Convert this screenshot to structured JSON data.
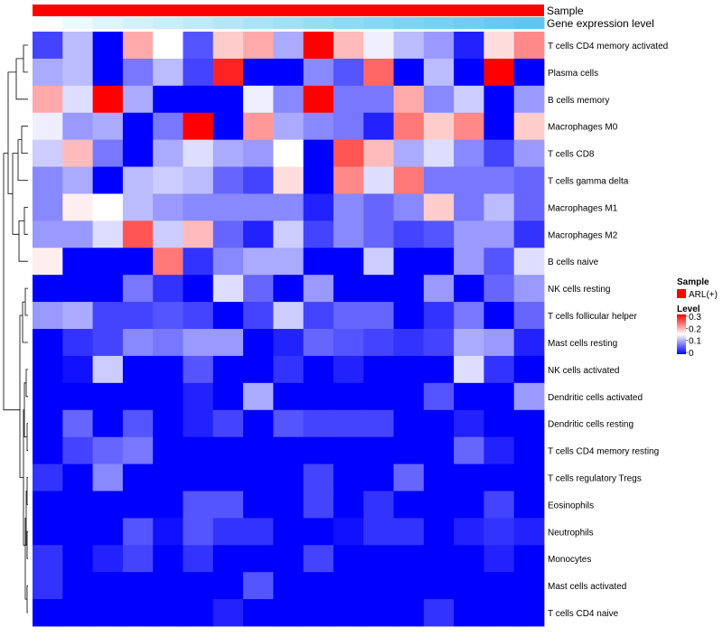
{
  "chart_data": {
    "type": "heatmap",
    "title": "",
    "annotation_rows": [
      {
        "name": "Sample",
        "color": "#ff0000"
      },
      {
        "name": "Gene expression level",
        "gradient": [
          "#ffffff",
          "#5ec7ef"
        ]
      }
    ],
    "rows": [
      "T cells CD4 memory activated",
      "Plasma cells",
      "B cells memory",
      "Macrophages M0",
      "T cells CD8",
      "T cells gamma delta",
      "Macrophages M1",
      "Macrophages M2",
      "B cells naive",
      "NK cells resting",
      "T cells follicular helper",
      "Mast cells resting",
      "NK cells activated",
      "Dendritic cells activated",
      "Dendritic cells resting",
      "T cells CD4 memory resting",
      "T cells regulatory  Tregs",
      "Eosinophils",
      "Neutrophils",
      "Monocytes",
      "Mast cells activated",
      "T cells CD4 naive"
    ],
    "n_columns": 17,
    "values": [
      [
        0.04,
        0.11,
        0.0,
        0.2,
        0.15,
        0.05,
        0.18,
        0.2,
        0.1,
        0.3,
        0.19,
        0.14,
        0.11,
        0.09,
        0.02,
        0.17,
        0.22
      ],
      [
        0.1,
        0.11,
        0.0,
        0.07,
        0.11,
        0.04,
        0.28,
        0.0,
        0.0,
        0.08,
        0.05,
        0.24,
        0.0,
        0.11,
        0.0,
        0.3,
        0.0
      ],
      [
        0.2,
        0.13,
        0.3,
        0.1,
        0.0,
        0.0,
        0.0,
        0.14,
        0.08,
        0.3,
        0.07,
        0.07,
        0.2,
        0.08,
        0.12,
        0.0,
        0.09
      ],
      [
        0.14,
        0.09,
        0.1,
        0.0,
        0.07,
        0.3,
        0.0,
        0.21,
        0.1,
        0.08,
        0.07,
        0.02,
        0.23,
        0.18,
        0.22,
        0.0,
        0.18
      ],
      [
        0.12,
        0.19,
        0.07,
        0.0,
        0.1,
        0.13,
        0.1,
        0.09,
        0.15,
        0.0,
        0.25,
        0.19,
        0.1,
        0.13,
        0.08,
        0.04,
        0.09
      ],
      [
        0.08,
        0.1,
        0.0,
        0.11,
        0.12,
        0.11,
        0.06,
        0.04,
        0.17,
        0.0,
        0.22,
        0.13,
        0.23,
        0.07,
        0.07,
        0.07,
        0.06
      ],
      [
        0.08,
        0.16,
        0.15,
        0.11,
        0.09,
        0.08,
        0.08,
        0.08,
        0.08,
        0.02,
        0.08,
        0.06,
        0.08,
        0.18,
        0.07,
        0.11,
        0.06
      ],
      [
        0.09,
        0.09,
        0.13,
        0.25,
        0.12,
        0.19,
        0.06,
        0.02,
        0.12,
        0.04,
        0.08,
        0.06,
        0.04,
        0.05,
        0.09,
        0.09,
        0.03
      ],
      [
        0.16,
        0.0,
        0.0,
        0.0,
        0.23,
        0.03,
        0.08,
        0.1,
        0.1,
        0.0,
        0.0,
        0.12,
        0.0,
        0.0,
        0.09,
        0.05,
        0.13
      ],
      [
        0.0,
        0.0,
        0.0,
        0.07,
        0.03,
        0.0,
        0.13,
        0.06,
        0.0,
        0.09,
        0.0,
        0.0,
        0.0,
        0.09,
        0.0,
        0.06,
        0.09
      ],
      [
        0.09,
        0.1,
        0.04,
        0.04,
        0.05,
        0.04,
        0.0,
        0.04,
        0.12,
        0.04,
        0.06,
        0.06,
        0.0,
        0.03,
        0.07,
        0.0,
        0.06
      ],
      [
        0.0,
        0.03,
        0.04,
        0.08,
        0.07,
        0.09,
        0.09,
        0.0,
        0.02,
        0.06,
        0.05,
        0.04,
        0.03,
        0.04,
        0.1,
        0.09,
        0.02
      ],
      [
        0.0,
        0.01,
        0.12,
        0.0,
        0.0,
        0.05,
        0.0,
        0.0,
        0.03,
        0.0,
        0.02,
        0.0,
        0.0,
        0.0,
        0.13,
        0.03,
        0.0
      ],
      [
        0.0,
        0.0,
        0.0,
        0.0,
        0.0,
        0.02,
        0.0,
        0.1,
        0.0,
        0.0,
        0.0,
        0.0,
        0.0,
        0.05,
        0.0,
        0.0,
        0.09
      ],
      [
        0.0,
        0.06,
        0.0,
        0.05,
        0.0,
        0.02,
        0.04,
        0.0,
        0.05,
        0.04,
        0.04,
        0.04,
        0.0,
        0.0,
        0.02,
        0.0,
        0.0
      ],
      [
        0.0,
        0.04,
        0.06,
        0.07,
        0.0,
        0.0,
        0.0,
        0.0,
        0.0,
        0.0,
        0.0,
        0.0,
        0.0,
        0.0,
        0.06,
        0.02,
        0.0
      ],
      [
        0.03,
        0.0,
        0.08,
        0.0,
        0.0,
        0.0,
        0.0,
        0.0,
        0.0,
        0.04,
        0.0,
        0.0,
        0.06,
        0.0,
        0.0,
        0.0,
        0.0
      ],
      [
        0.0,
        0.0,
        0.0,
        0.0,
        0.0,
        0.05,
        0.05,
        0.0,
        0.0,
        0.04,
        0.0,
        0.03,
        0.0,
        0.0,
        0.0,
        0.04,
        0.0
      ],
      [
        0.0,
        0.0,
        0.0,
        0.05,
        0.01,
        0.05,
        0.03,
        0.03,
        0.0,
        0.0,
        0.01,
        0.03,
        0.03,
        0.0,
        0.02,
        0.03,
        0.02
      ],
      [
        0.03,
        0.0,
        0.02,
        0.04,
        0.0,
        0.03,
        0.0,
        0.0,
        0.0,
        0.04,
        0.0,
        0.0,
        0.0,
        0.0,
        0.0,
        0.02,
        0.0
      ],
      [
        0.03,
        0.0,
        0.0,
        0.0,
        0.0,
        0.0,
        0.0,
        0.05,
        0.0,
        0.0,
        0.0,
        0.0,
        0.0,
        0.0,
        0.0,
        0.0,
        0.0
      ],
      [
        0.0,
        0.0,
        0.0,
        0.0,
        0.0,
        0.0,
        0.02,
        0.0,
        0.0,
        0.0,
        0.0,
        0.0,
        0.0,
        0.03,
        0.0,
        0.0,
        0.0
      ]
    ],
    "color_scale": {
      "low": "#0000ff",
      "mid": "#ffffff",
      "high": "#ff0000",
      "min": 0,
      "mid_value": 0.15,
      "max": 0.3
    },
    "legend": {
      "sample_title": "Sample",
      "sample_entry": "ARL(+)",
      "level_title": "Level",
      "level_ticks": [
        "0.3",
        "0.2",
        "0.1",
        "0"
      ]
    }
  }
}
